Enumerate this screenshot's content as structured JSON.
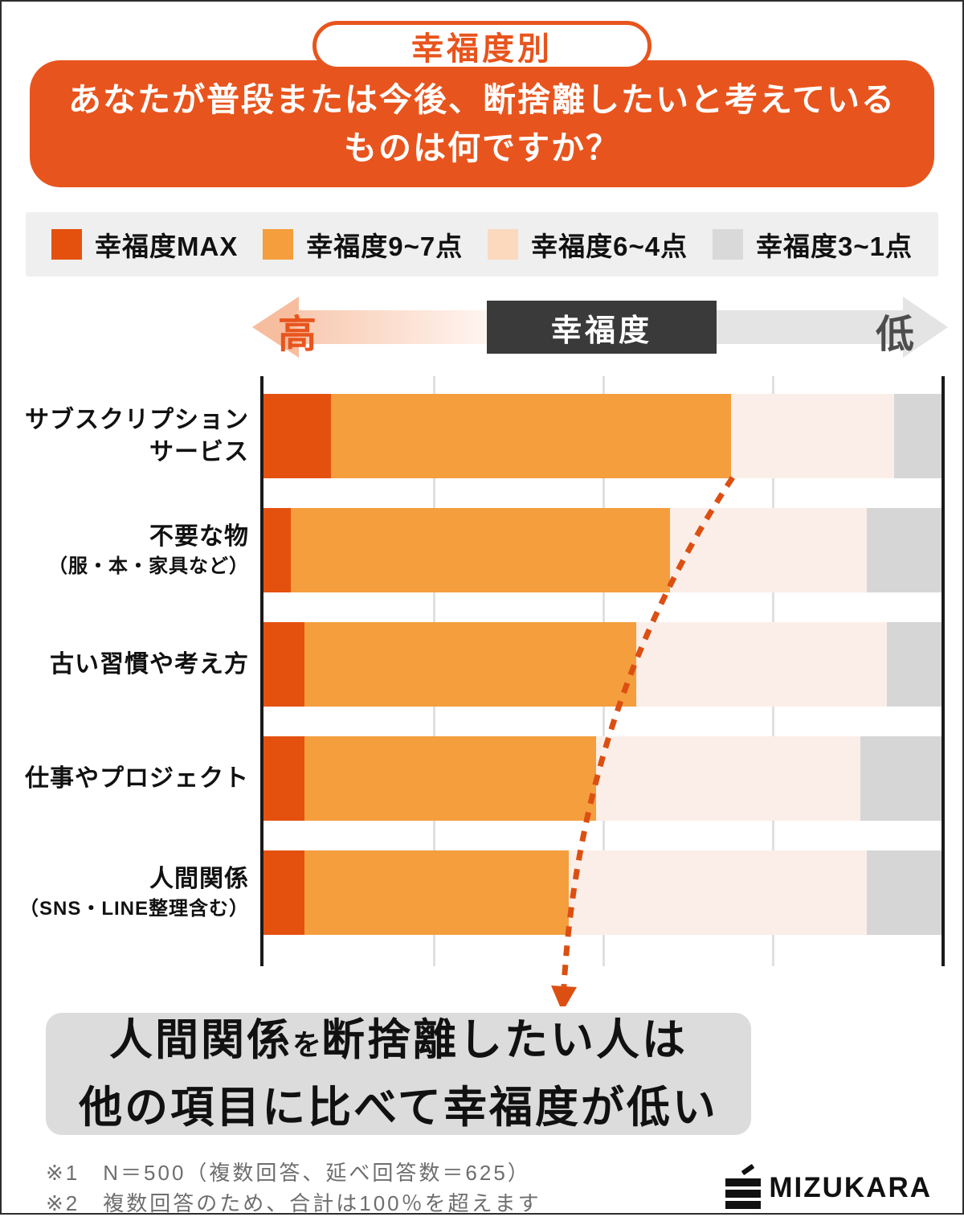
{
  "header": {
    "badge": "幸福度別",
    "title_line1": "あなたが普段または今後、断捨離したいと考えている",
    "title_line2": "ものは何ですか？"
  },
  "legend": {
    "items": [
      {
        "label": "幸福度MAX",
        "color": "#e4510f"
      },
      {
        "label": "幸福度9~7点",
        "color": "#f49e3e"
      },
      {
        "label": "幸福度6~4点",
        "color": "#fcd8bd"
      },
      {
        "label": "幸福度3~1点",
        "color": "#d9d9d9"
      }
    ]
  },
  "axis": {
    "high": "高",
    "center": "幸福度",
    "low": "低"
  },
  "chart_data": {
    "type": "bar",
    "stacked": true,
    "orientation": "horizontal",
    "values_are_estimates": true,
    "xlim": [
      0,
      100
    ],
    "grid": true,
    "categories": [
      "サブスクリプションサービス",
      "不要な物（服・本・家具など）",
      "古い習慣や考え方",
      "仕事やプロジェクト",
      "人間関係（SNS・LINE整理含む）"
    ],
    "categories_display": [
      {
        "lines": [
          "サブスクリプション",
          "サービス"
        ],
        "small": [
          false,
          false
        ]
      },
      {
        "lines": [
          "不要な物",
          "（服・本・家具など）"
        ],
        "small": [
          false,
          true
        ]
      },
      {
        "lines": [
          "古い習慣や考え方"
        ],
        "small": [
          false
        ]
      },
      {
        "lines": [
          "仕事やプロジェクト"
        ],
        "small": [
          false
        ]
      },
      {
        "lines": [
          "人間関係",
          "（SNS・LINE整理含む）"
        ],
        "small": [
          false,
          true
        ]
      }
    ],
    "series": [
      {
        "name": "幸福度MAX",
        "color": "#e4510f",
        "values": [
          10,
          4,
          6,
          6,
          6
        ]
      },
      {
        "name": "幸福度9~7点",
        "color": "#f49e3e",
        "values": [
          59,
          56,
          49,
          43,
          39
        ]
      },
      {
        "name": "幸福度6~4点",
        "color": "#fbeee8",
        "values": [
          24,
          29,
          37,
          39,
          44
        ]
      },
      {
        "name": "幸福度3~1点",
        "color": "#d6d6d6",
        "values": [
          7,
          11,
          8,
          12,
          11
        ]
      }
    ],
    "annotation_arrow": "端部（幸福度9~7点の境界）が下の項目ほど左へ移動することを示す点線矢印"
  },
  "callout": {
    "line1_big1": "人間関係",
    "line1_small": "を",
    "line1_big2": "断捨離したい人は",
    "line2": "他の項目に比べて幸福度が低い"
  },
  "footer": {
    "notes": [
      "※1　N＝500（複数回答、延べ回答数＝625）",
      "※2　複数回答のため、合計は100％を超えます"
    ],
    "logo_text": "MIZUKARA"
  }
}
